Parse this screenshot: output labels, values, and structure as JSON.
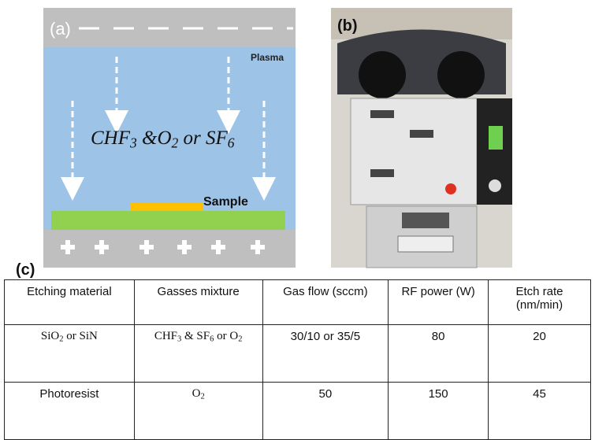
{
  "panel_a": {
    "label": "(a)",
    "plasma": "Plasma",
    "gas": [
      {
        "text": "CHF"
      },
      {
        "sub": "3"
      },
      {
        "text": " &O"
      },
      {
        "sub": "2"
      },
      {
        "text": " or SF"
      },
      {
        "sub": "6"
      }
    ],
    "sample": "Sample"
  },
  "panel_b": {
    "label": "(b)"
  },
  "panel_c": {
    "label": "(c)",
    "table": {
      "header": [
        [
          {
            "text": "Etching material"
          }
        ],
        [
          {
            "text": "Gasses mixture"
          }
        ],
        [
          {
            "text": "Gas flow  (sccm)"
          }
        ],
        [
          {
            "text": "RF power (W)"
          }
        ],
        [
          {
            "text": "Etch rate (nm/min)"
          }
        ]
      ],
      "rows": [
        [
          [
            {
              "text": "SiO"
            },
            {
              "sub": "2"
            },
            {
              "text": " or SiN"
            }
          ],
          [
            {
              "text": "CHF"
            },
            {
              "sub": "3"
            },
            {
              "text": " & SF"
            },
            {
              "sub": "6"
            },
            {
              "text": " or O"
            },
            {
              "sub": "2"
            }
          ],
          [
            {
              "text": "30/10 or 35/5"
            }
          ],
          [
            {
              "text": "80"
            }
          ],
          [
            {
              "text": "20"
            }
          ]
        ],
        [
          [
            {
              "text": "Photoresist"
            }
          ],
          [
            {
              "text": "O"
            },
            {
              "sub": "2"
            }
          ],
          [
            {
              "text": "50"
            }
          ],
          [
            {
              "text": "150"
            }
          ],
          [
            {
              "text": "45"
            }
          ]
        ]
      ]
    }
  }
}
